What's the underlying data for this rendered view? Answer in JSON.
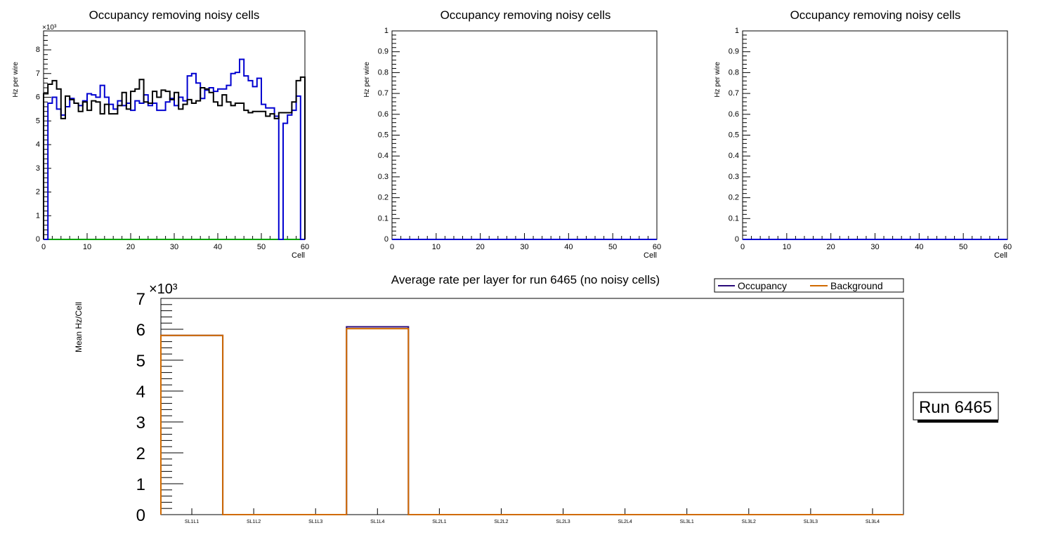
{
  "chart_data": [
    {
      "type": "line",
      "title": "Occupancy removing noisy cells",
      "xlabel": "Cell",
      "ylabel": "Hz per wire",
      "y_multiplier": "×10³",
      "xlim": [
        0,
        60
      ],
      "ylim": [
        0,
        8.8
      ],
      "x_ticks": [
        0,
        10,
        20,
        30,
        40,
        50,
        60
      ],
      "y_ticks": [
        0,
        1,
        2,
        3,
        4,
        5,
        6,
        7,
        8
      ],
      "series": [
        {
          "name": "black",
          "color": "#000000",
          "values": [
            6.15,
            6.55,
            6.7,
            6.35,
            5.1,
            6.05,
            5.9,
            5.75,
            5.4,
            5.8,
            5.45,
            5.85,
            5.8,
            5.3,
            5.7,
            5.3,
            5.3,
            5.65,
            6.2,
            5.5,
            6.25,
            6.35,
            6.75,
            5.8,
            5.75,
            6.25,
            6.0,
            6.3,
            6.25,
            5.9,
            6.2,
            5.5,
            5.7,
            5.9,
            5.75,
            5.85,
            6.4,
            6.35,
            6.2,
            5.8,
            5.65,
            6.1,
            5.8,
            5.65,
            5.75,
            5.75,
            5.45,
            5.35,
            5.4,
            5.4,
            5.4,
            5.2,
            5.3,
            5.1,
            5.35,
            5.35,
            5.35,
            5.8,
            6.7,
            6.85
          ]
        },
        {
          "name": "blue",
          "color": "#0000d0",
          "values": [
            0,
            5.75,
            6.0,
            5.5,
            5.25,
            5.6,
            5.95,
            5.75,
            5.65,
            5.85,
            6.15,
            6.1,
            6.0,
            6.5,
            6.0,
            5.7,
            5.5,
            5.85,
            5.65,
            5.75,
            5.45,
            5.85,
            5.75,
            6.1,
            5.65,
            5.75,
            5.45,
            5.45,
            5.8,
            5.95,
            5.65,
            6.0,
            5.85,
            6.9,
            7.0,
            6.6,
            5.95,
            6.3,
            6.4,
            6.25,
            6.35,
            6.35,
            6.5,
            7.0,
            7.05,
            7.6,
            6.9,
            6.7,
            6.45,
            6.8,
            5.7,
            5.55,
            5.55,
            5.2,
            0,
            4.9,
            5.25,
            5.45,
            6.05,
            0
          ]
        },
        {
          "name": "green",
          "color": "#00a000",
          "values": [
            0,
            0,
            0,
            0,
            0,
            0,
            0,
            0,
            0,
            0,
            0,
            0,
            0,
            0,
            0,
            0,
            0,
            0,
            0,
            0,
            0,
            0,
            0,
            0,
            0,
            0,
            0,
            0,
            0,
            0,
            0,
            0,
            0,
            0,
            0,
            0,
            0,
            0,
            0,
            0,
            0,
            0,
            0,
            0,
            0,
            0,
            0,
            0,
            0,
            0,
            0,
            0,
            0,
            0,
            0,
            0,
            0,
            0,
            0,
            0
          ]
        }
      ]
    },
    {
      "type": "line",
      "title": "Occupancy removing noisy cells",
      "xlabel": "Cell",
      "ylabel": "Hz per wire",
      "xlim": [
        0,
        60
      ],
      "ylim": [
        0,
        1
      ],
      "x_ticks": [
        0,
        10,
        20,
        30,
        40,
        50,
        60
      ],
      "y_ticks": [
        "0",
        "0.1",
        "0.2",
        "0.3",
        "0.4",
        "0.5",
        "0.6",
        "0.7",
        "0.8",
        "0.9",
        "1"
      ],
      "series": [
        {
          "name": "blue",
          "color": "#0000d0",
          "values": [
            0
          ]
        }
      ]
    },
    {
      "type": "line",
      "title": "Occupancy removing noisy cells",
      "xlabel": "Cell",
      "ylabel": "Hz per wire",
      "xlim": [
        0,
        60
      ],
      "ylim": [
        0,
        1
      ],
      "x_ticks": [
        0,
        10,
        20,
        30,
        40,
        50,
        60
      ],
      "y_ticks": [
        "0",
        "0.1",
        "0.2",
        "0.3",
        "0.4",
        "0.5",
        "0.6",
        "0.7",
        "0.8",
        "0.9",
        "1"
      ],
      "series": [
        {
          "name": "blue",
          "color": "#0000d0",
          "values": [
            0
          ]
        }
      ]
    },
    {
      "type": "bar",
      "title": "Average rate per layer for run 6465 (no noisy cells)",
      "xlabel": "",
      "ylabel": "Mean Hz/Cell",
      "y_multiplier": "×10³",
      "ylim": [
        0,
        7
      ],
      "y_ticks": [
        0,
        1,
        2,
        3,
        4,
        5,
        6,
        7
      ],
      "categories": [
        "SL1L1",
        "SL1L2",
        "SL1L3",
        "SL1L4",
        "SL2L1",
        "SL2L2",
        "SL2L3",
        "SL2L4",
        "SL3L1",
        "SL3L2",
        "SL3L3",
        "SL3L4"
      ],
      "series": [
        {
          "name": "Occupancy",
          "color": "#2a0a7a",
          "values": [
            5.8,
            0,
            0,
            6.08,
            0,
            0,
            0,
            0,
            0,
            0,
            0,
            0
          ]
        },
        {
          "name": "Background",
          "color": "#d06a00",
          "values": [
            5.8,
            0,
            0,
            6.02,
            0,
            0,
            0,
            0,
            0,
            0,
            0,
            0
          ]
        }
      ],
      "legend": "top-right",
      "annotation": "Run 6465"
    }
  ]
}
